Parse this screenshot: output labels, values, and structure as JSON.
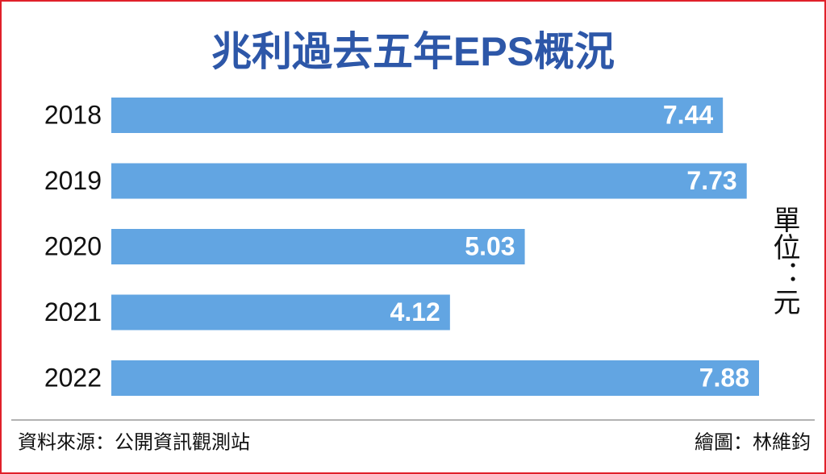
{
  "chart_data": {
    "type": "bar",
    "orientation": "horizontal",
    "title": "兆利過去五年EPS概況",
    "categories": [
      "2018",
      "2019",
      "2020",
      "2021",
      "2022"
    ],
    "values": [
      7.44,
      7.73,
      5.03,
      4.12,
      7.88
    ],
    "color": "#62a5e2",
    "unit": "單位：元",
    "source": "資料來源：公開資訊觀測站",
    "credit": "繪圖：林維鈞"
  }
}
